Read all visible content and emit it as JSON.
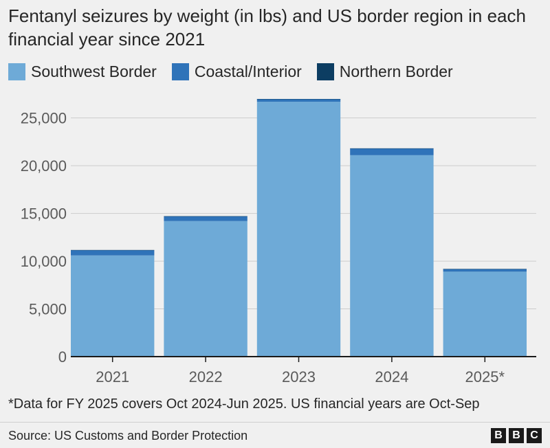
{
  "title": "Fentanyl seizures by weight (in lbs) and US border region in each financial year since 2021",
  "note": "*Data for FY 2025 covers Oct 2024-Jun 2025. US financial years are Oct-Sep",
  "source": "Source: US Customs and Border Protection",
  "logo_letters": [
    "B",
    "B",
    "C"
  ],
  "colors": {
    "background": "#f0f0f0",
    "grid": "#cccccc",
    "axis": "#1a1a1a"
  },
  "chart_data": {
    "type": "bar",
    "stacked": true,
    "categories": [
      "2021",
      "2022",
      "2023",
      "2024",
      "2025*"
    ],
    "series": [
      {
        "name": "Southwest Border",
        "color": "#6eaad7",
        "values": [
          10600,
          14200,
          26700,
          21100,
          8900
        ]
      },
      {
        "name": "Coastal/Interior",
        "color": "#2f73b9",
        "values": [
          550,
          500,
          270,
          700,
          280
        ]
      },
      {
        "name": "Northern Border",
        "color": "#0c3d62",
        "values": [
          20,
          10,
          20,
          20,
          5
        ]
      }
    ],
    "ylim": [
      0,
      28000
    ],
    "yticks": [
      0,
      5000,
      10000,
      15000,
      20000,
      25000
    ],
    "ytick_labels": [
      "0",
      "5,000",
      "10,000",
      "15,000",
      "20,000",
      "25,000"
    ],
    "xlabel": "",
    "ylabel": "",
    "grid": true,
    "legend_position": "top-left"
  }
}
